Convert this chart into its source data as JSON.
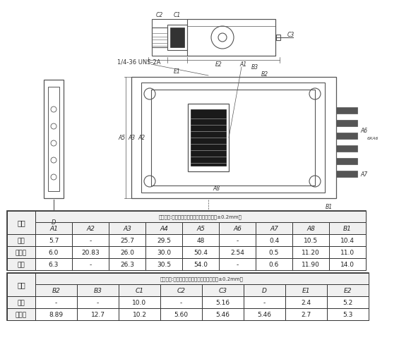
{
  "background_color": "#ffffff",
  "diagram_color": "#555555",
  "text_color": "#333333",
  "table1": {
    "header_note": "符号（注:图中未标最大最小值的尺寸精度为±0.2mm）",
    "col_headers": [
      "A1",
      "A2",
      "A3",
      "A4",
      "A5",
      "A6",
      "A7",
      "A8",
      "B1"
    ],
    "row_labels": [
      "最小",
      "公称值",
      "最大"
    ],
    "data": [
      [
        "5.7",
        "-",
        "25.7",
        "29.5",
        "48",
        "-",
        "0.4",
        "10.5",
        "10.4"
      ],
      [
        "6.0",
        "20.83",
        "26.0",
        "30.0",
        "50.4",
        "2.54",
        "0.5",
        "11.20",
        "11.0"
      ],
      [
        "6.3",
        "-",
        "26.3",
        "30.5",
        "54.0",
        "-",
        "0.6",
        "11.90",
        "14.0"
      ]
    ]
  },
  "table2": {
    "header_note": "符号（注:图中未标最大最小值的尺寸精度为±0.2mm）",
    "col_headers": [
      "B2",
      "B3",
      "C1",
      "C2",
      "C3",
      "D",
      "E1",
      "E2"
    ],
    "row_labels": [
      "最小",
      "公称值"
    ],
    "data": [
      [
        "-",
        "-",
        "10.0",
        "-",
        "5.16",
        "-",
        "2.4",
        "5.2"
      ],
      [
        "8.89",
        "12.7",
        "10.2",
        "5.60",
        "5.46",
        "5.46",
        "2.7",
        "5.3"
      ]
    ]
  },
  "dim_label": "尺寸",
  "label_1436": "1/4-36 UNS-2A"
}
